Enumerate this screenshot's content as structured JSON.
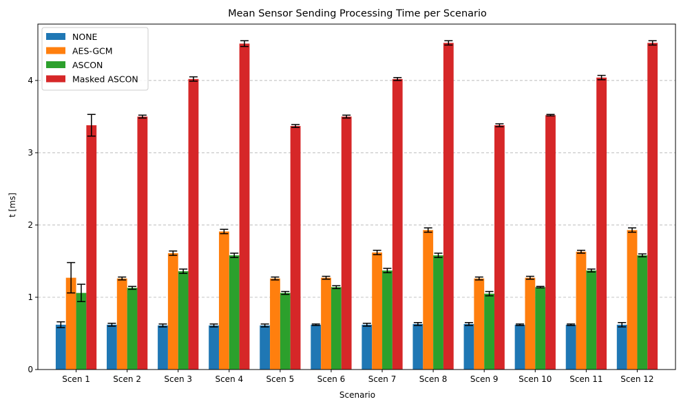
{
  "chart_data": {
    "type": "bar",
    "title": "Mean Sensor Sending Processing Time per Scenario",
    "xlabel": "Scenario",
    "ylabel": "t [ms]",
    "ylim": [
      0,
      4.78
    ],
    "yticks": [
      0,
      1,
      2,
      3,
      4
    ],
    "grid": "y-dashed",
    "legend_position": "top-left",
    "categories": [
      "Scen 1",
      "Scen 2",
      "Scen 3",
      "Scen 4",
      "Scen 5",
      "Scen 6",
      "Scen 7",
      "Scen 8",
      "Scen 9",
      "Scen 10",
      "Scen 11",
      "Scen 12"
    ],
    "series": [
      {
        "name": "NONE",
        "color": "#1f77b4",
        "values": [
          0.62,
          0.62,
          0.61,
          0.61,
          0.61,
          0.62,
          0.62,
          0.63,
          0.63,
          0.62,
          0.62,
          0.62
        ],
        "errors": [
          0.04,
          0.02,
          0.02,
          0.02,
          0.02,
          0.01,
          0.02,
          0.02,
          0.02,
          0.01,
          0.01,
          0.03
        ]
      },
      {
        "name": "AES-GCM",
        "color": "#ff7f0e",
        "values": [
          1.27,
          1.26,
          1.61,
          1.91,
          1.26,
          1.27,
          1.62,
          1.93,
          1.26,
          1.27,
          1.63,
          1.93
        ],
        "errors": [
          0.21,
          0.02,
          0.03,
          0.03,
          0.02,
          0.02,
          0.03,
          0.03,
          0.02,
          0.02,
          0.02,
          0.03
        ]
      },
      {
        "name": "ASCON",
        "color": "#2ca02c",
        "values": [
          1.06,
          1.13,
          1.36,
          1.58,
          1.06,
          1.14,
          1.37,
          1.58,
          1.05,
          1.14,
          1.37,
          1.58
        ],
        "errors": [
          0.12,
          0.02,
          0.03,
          0.03,
          0.02,
          0.02,
          0.03,
          0.03,
          0.03,
          0.01,
          0.02,
          0.02
        ]
      },
      {
        "name": "Masked ASCON",
        "color": "#d62728",
        "values": [
          3.38,
          3.5,
          4.02,
          4.51,
          3.37,
          3.5,
          4.02,
          4.52,
          3.38,
          3.52,
          4.04,
          4.52
        ],
        "errors": [
          0.15,
          0.02,
          0.03,
          0.04,
          0.02,
          0.02,
          0.02,
          0.03,
          0.02,
          0.01,
          0.03,
          0.03
        ]
      }
    ]
  }
}
